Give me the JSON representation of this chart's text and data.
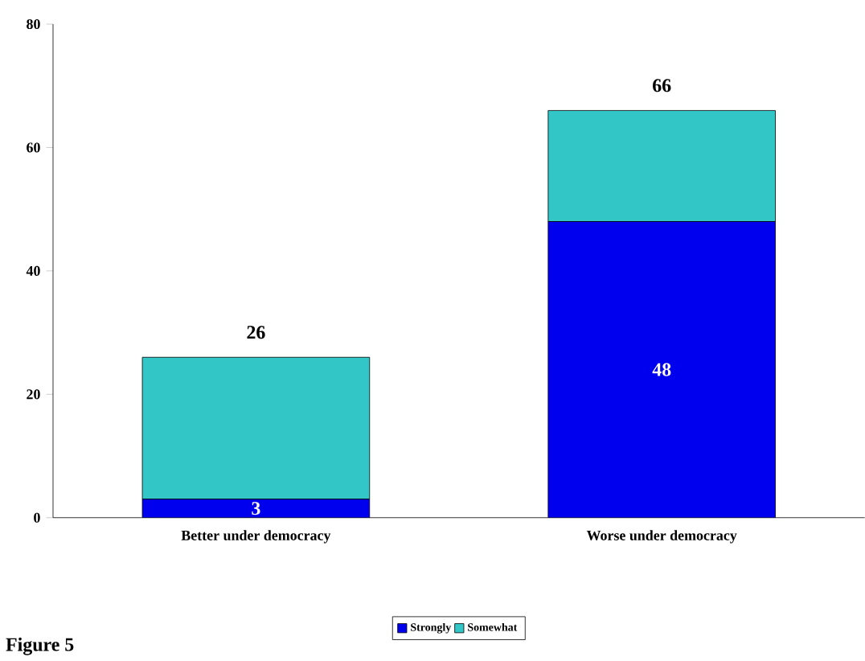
{
  "chart_data": {
    "type": "bar",
    "stacked": true,
    "categories": [
      "Better under democracy",
      "Worse under democracy"
    ],
    "series": [
      {
        "name": "Strongly",
        "color": "#0000ee",
        "values": [
          3,
          48
        ],
        "value_labels": [
          "3",
          "48"
        ]
      },
      {
        "name": "Somewhat",
        "color": "#33c6c6",
        "values": [
          23,
          18
        ]
      }
    ],
    "totals": [
      "26",
      "66"
    ],
    "ylim": [
      0,
      80
    ],
    "yticks": [
      0,
      20,
      40,
      60,
      80
    ],
    "grid": false,
    "legend": "bottom",
    "annotations": [
      "Figure 5"
    ]
  }
}
